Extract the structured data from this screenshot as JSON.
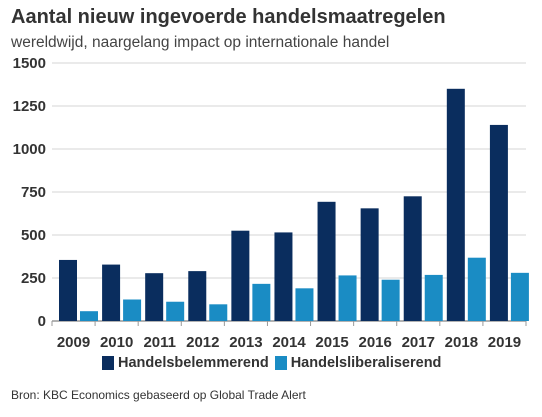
{
  "chart_data": {
    "type": "bar",
    "title": "Aantal nieuw ingevoerde handelsmaatregelen",
    "subtitle": "wereldwijd, naargelang impact op internationale handel",
    "categories": [
      "2009",
      "2010",
      "2011",
      "2012",
      "2013",
      "2014",
      "2015",
      "2016",
      "2017",
      "2018",
      "2019"
    ],
    "series": [
      {
        "name": "Handelsbelemmerend",
        "color": "#0a2d5e",
        "values": [
          355,
          328,
          278,
          290,
          525,
          515,
          693,
          655,
          725,
          1350,
          1140
        ]
      },
      {
        "name": "Handelsliberaliserend",
        "color": "#1a8cc4",
        "values": [
          57,
          125,
          112,
          97,
          216,
          190,
          265,
          240,
          268,
          368,
          280
        ]
      }
    ],
    "ylim": [
      0,
      1500
    ],
    "yticks": [
      0,
      250,
      500,
      750,
      1000,
      1250,
      1500
    ],
    "grid": true,
    "legend": "bottom",
    "source": "Bron: KBC Economics gebaseerd op Global Trade Alert"
  }
}
